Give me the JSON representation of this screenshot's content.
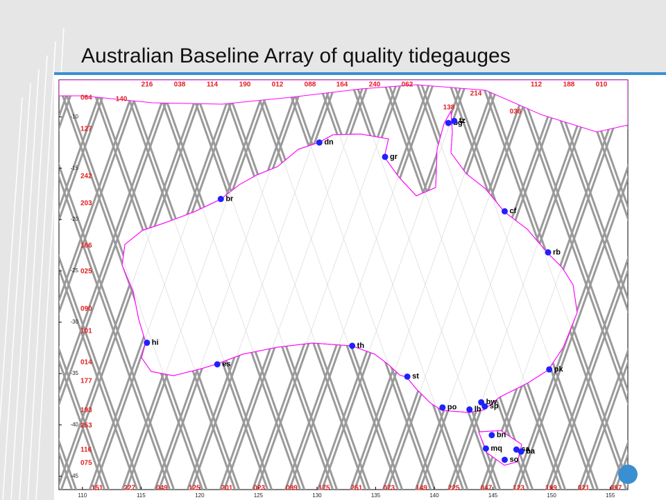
{
  "chart_data": {
    "type": "scatter",
    "title": "Australian Baseline Array of quality tidegauges",
    "xlim": [
      108,
      156.5
    ],
    "ylim": [
      -46.3,
      -6.4
    ],
    "xticks": [
      110,
      115,
      120,
      125,
      130,
      135,
      140,
      145,
      150,
      155
    ],
    "yticks": [
      -10,
      -15,
      -20,
      -25,
      -30,
      -35,
      -40,
      -45
    ],
    "point_labels": [
      "dn",
      "gr",
      "br",
      "cf",
      "rb",
      "hi",
      "es",
      "th",
      "st",
      "pk",
      "po",
      "lb",
      "bw",
      "sp",
      "bn",
      "mq",
      "sa",
      "ba",
      "so",
      "bg",
      "tz"
    ],
    "x": [
      130.2,
      135.8,
      121.8,
      146.0,
      149.7,
      115.5,
      121.5,
      133.0,
      137.7,
      149.8,
      140.7,
      143.0,
      144.0,
      144.3,
      144.9,
      144.4,
      147.0,
      147.4,
      146.0,
      141.2,
      141.7
    ],
    "values": [
      -12.5,
      -13.9,
      -18.0,
      -19.2,
      -23.2,
      -32.0,
      -34.1,
      -32.3,
      -35.3,
      -34.6,
      -38.3,
      -38.5,
      -37.8,
      -38.2,
      -41.0,
      -42.3,
      -42.4,
      -42.6,
      -43.4,
      -10.6,
      -10.4
    ],
    "color": "#2020ff",
    "coast_color": "#ff00ff",
    "track_labels": {
      "top": [
        "216",
        "038",
        "114",
        "190",
        "012",
        "088",
        "164",
        "240",
        "062",
        "112",
        "188",
        "010"
      ],
      "inner": [
        "140",
        "214",
        "138",
        "036"
      ],
      "bottom": [
        "151",
        "227",
        "049",
        "125",
        "201",
        "023",
        "099",
        "175",
        "251",
        "073",
        "149",
        "225",
        "047",
        "123",
        "199",
        "021",
        "097"
      ],
      "left": [
        "064",
        "127",
        "242",
        "203",
        "166",
        "025",
        "090",
        "101",
        "014",
        "177",
        "193",
        "253",
        "116",
        "075"
      ]
    }
  }
}
